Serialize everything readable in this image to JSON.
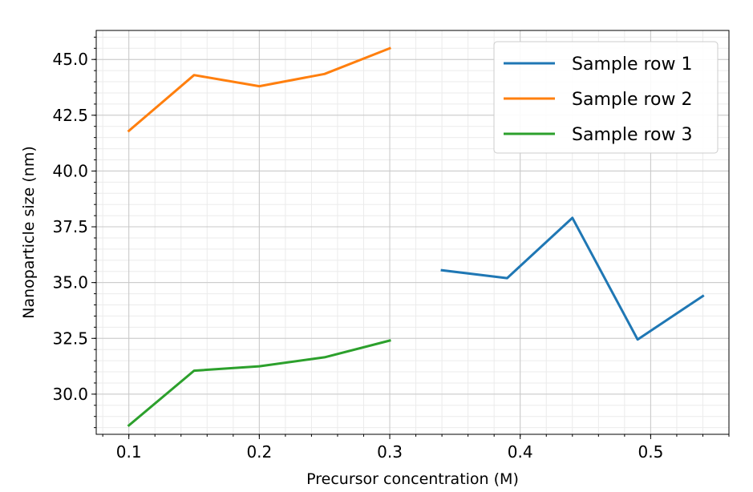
{
  "chart_data": {
    "type": "line",
    "xlabel": "Precursor concentration (M)",
    "ylabel": "Nanoparticle size (nm)",
    "xlim": [
      0.075,
      0.56
    ],
    "ylim": [
      28.2,
      46.3
    ],
    "x_ticks": [
      0.1,
      0.2,
      0.3,
      0.4,
      0.5
    ],
    "x_tick_labels": [
      "0.1",
      "0.2",
      "0.3",
      "0.4",
      "0.5"
    ],
    "y_ticks": [
      30.0,
      32.5,
      35.0,
      37.5,
      40.0,
      42.5,
      45.0
    ],
    "y_tick_labels": [
      "30.0",
      "32.5",
      "35.0",
      "37.5",
      "40.0",
      "42.5",
      "45.0"
    ],
    "grid": true,
    "minor_grid": true,
    "legend_position": "top-right",
    "series": [
      {
        "name": "Sample row 1",
        "color": "#1f77b4",
        "x": [
          0.34,
          0.39,
          0.44,
          0.49,
          0.54
        ],
        "y": [
          35.55,
          35.2,
          37.9,
          32.45,
          34.4
        ]
      },
      {
        "name": "Sample row 2",
        "color": "#ff7f0e",
        "x": [
          0.1,
          0.15,
          0.2,
          0.25,
          0.3
        ],
        "y": [
          41.8,
          44.3,
          43.8,
          44.35,
          45.5
        ]
      },
      {
        "name": "Sample row 3",
        "color": "#2ca02c",
        "x": [
          0.1,
          0.15,
          0.2,
          0.25,
          0.3
        ],
        "y": [
          28.6,
          31.05,
          31.25,
          31.65,
          32.4
        ]
      }
    ]
  }
}
